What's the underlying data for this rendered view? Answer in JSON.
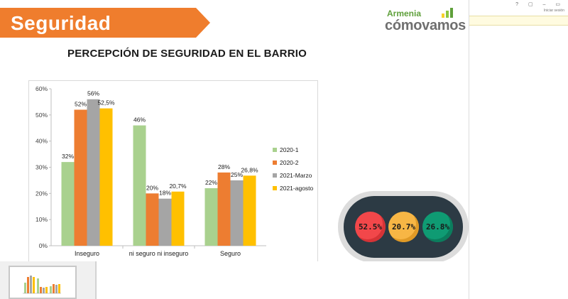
{
  "header": {
    "title": "Seguridad"
  },
  "logo": {
    "line1": "Armenia",
    "line2": "cómovamos",
    "accent": "#5fa03b",
    "bars": [
      "#f6d02b",
      "#8cc63f",
      "#5fa03b"
    ]
  },
  "window": {
    "icons": "? ▢ – ▭",
    "signin": "Iniciar sesión"
  },
  "chart_data": {
    "type": "bar",
    "title": "PERCEPCIÓN DE SEGURIDAD EN EL BARRIO",
    "categories": [
      "Inseguro",
      "ni seguro ni inseguro",
      "Seguro"
    ],
    "series": [
      {
        "name": "2020-1",
        "values": [
          32,
          46,
          22
        ],
        "labels": [
          "32%",
          "46%",
          "22%"
        ],
        "color": "#a9d18e"
      },
      {
        "name": "2020-2",
        "values": [
          52,
          20,
          28
        ],
        "labels": [
          "52%",
          "20%",
          "28%"
        ],
        "color": "#ed7d31"
      },
      {
        "name": "2021-Marzo",
        "values": [
          56,
          18,
          25
        ],
        "labels": [
          "56%",
          "18%",
          "25%"
        ],
        "color": "#a5a5a5"
      },
      {
        "name": "2021-agosto",
        "values": [
          52.5,
          20.7,
          26.8
        ],
        "labels": [
          "52,5%",
          "20,7%",
          "26,8%"
        ],
        "color": "#ffc000"
      }
    ],
    "yticks": [
      "0%",
      "10%",
      "20%",
      "30%",
      "40%",
      "50%",
      "60%"
    ],
    "ylim": [
      0,
      60
    ],
    "grid": false,
    "legend": "right"
  },
  "traffic_light": {
    "lights": [
      {
        "label": "52.5%",
        "color": "#f2474a",
        "ring": "#d63336"
      },
      {
        "label": "20.7%",
        "color": "#f7b645",
        "ring": "#e09a26"
      },
      {
        "label": "26.8%",
        "color": "#0f9b73",
        "ring": "#0b7d5d"
      }
    ]
  }
}
